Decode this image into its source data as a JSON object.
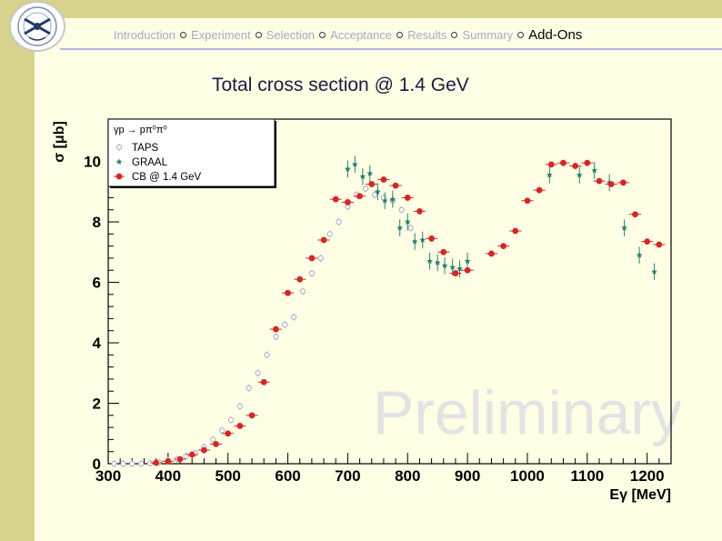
{
  "nav": {
    "items": [
      "Introduction",
      "Experiment",
      "Selection",
      "Acceptance",
      "Results",
      "Summary",
      "Add-Ons"
    ],
    "active_index": 6
  },
  "slide": {
    "title": "Total cross section @ 1.4 GeV"
  },
  "colors": {
    "sidebar": "#D7D28C",
    "background": "#FFFFE6",
    "taps": "#B4B4C8",
    "graal": "#2D7D6E",
    "cb": "#D22828"
  },
  "chart_data": {
    "type": "scatter",
    "title": "",
    "reaction": "γp → pπ⁰π⁰",
    "xlabel": "Eγ [MeV]",
    "ylabel": "σ [μb]",
    "xlim": [
      300,
      1240
    ],
    "ylim": [
      0,
      11.4
    ],
    "xticks": [
      300,
      400,
      500,
      600,
      700,
      800,
      900,
      1000,
      1100,
      1200
    ],
    "yticks": [
      0,
      2,
      4,
      6,
      8,
      10
    ],
    "grid": false,
    "legend_position": "top-left",
    "watermark": "Preliminary",
    "series": [
      {
        "name": "TAPS",
        "marker": "open-circle",
        "x": [
          310,
          325,
          340,
          355,
          370,
          385,
          400,
          415,
          430,
          445,
          460,
          475,
          490,
          505,
          520,
          535,
          550,
          565,
          580,
          595,
          610,
          625,
          640,
          655,
          670,
          685,
          700,
          715,
          730,
          745,
          760,
          775,
          790,
          805
        ],
        "y": [
          0.0,
          0.0,
          0.0,
          0.0,
          0.02,
          0.05,
          0.1,
          0.15,
          0.25,
          0.35,
          0.55,
          0.8,
          1.1,
          1.45,
          1.9,
          2.5,
          3.0,
          3.6,
          4.2,
          4.6,
          4.85,
          5.7,
          6.3,
          6.8,
          7.6,
          8.0,
          8.5,
          8.9,
          9.1,
          8.9,
          8.8,
          8.7,
          8.4,
          7.8
        ]
      },
      {
        "name": "GRAAL",
        "marker": "star",
        "x": [
          700,
          712,
          725,
          737,
          750,
          762,
          775,
          787,
          800,
          812,
          825,
          837,
          850,
          862,
          875,
          887,
          900,
          1037,
          1087,
          1112,
          1137,
          1162,
          1187,
          1212
        ],
        "y": [
          9.75,
          9.9,
          9.5,
          9.6,
          9.0,
          8.7,
          8.75,
          7.8,
          8.0,
          7.35,
          7.4,
          6.7,
          6.65,
          6.55,
          6.5,
          6.45,
          6.7,
          9.55,
          9.55,
          9.7,
          9.3,
          7.8,
          6.9,
          6.35
        ]
      },
      {
        "name": "CB @ 1.4 GeV",
        "marker": "filled-circle",
        "x": [
          380,
          400,
          420,
          440,
          460,
          480,
          500,
          520,
          540,
          560,
          580,
          600,
          620,
          640,
          660,
          680,
          700,
          720,
          740,
          760,
          780,
          800,
          820,
          840,
          860,
          880,
          900,
          940,
          960,
          980,
          1000,
          1020,
          1040,
          1060,
          1080,
          1100,
          1120,
          1140,
          1160,
          1180,
          1200,
          1220
        ],
        "y": [
          0.03,
          0.08,
          0.15,
          0.3,
          0.45,
          0.65,
          1.0,
          1.25,
          1.6,
          2.7,
          4.45,
          5.65,
          6.1,
          6.8,
          7.4,
          8.75,
          8.65,
          8.85,
          9.25,
          9.4,
          9.2,
          8.8,
          8.35,
          7.45,
          7.0,
          6.3,
          6.4,
          6.95,
          7.2,
          7.7,
          8.7,
          9.05,
          9.9,
          9.95,
          9.85,
          9.95,
          9.35,
          9.25,
          9.3,
          8.25,
          7.35,
          7.25
        ]
      }
    ]
  }
}
